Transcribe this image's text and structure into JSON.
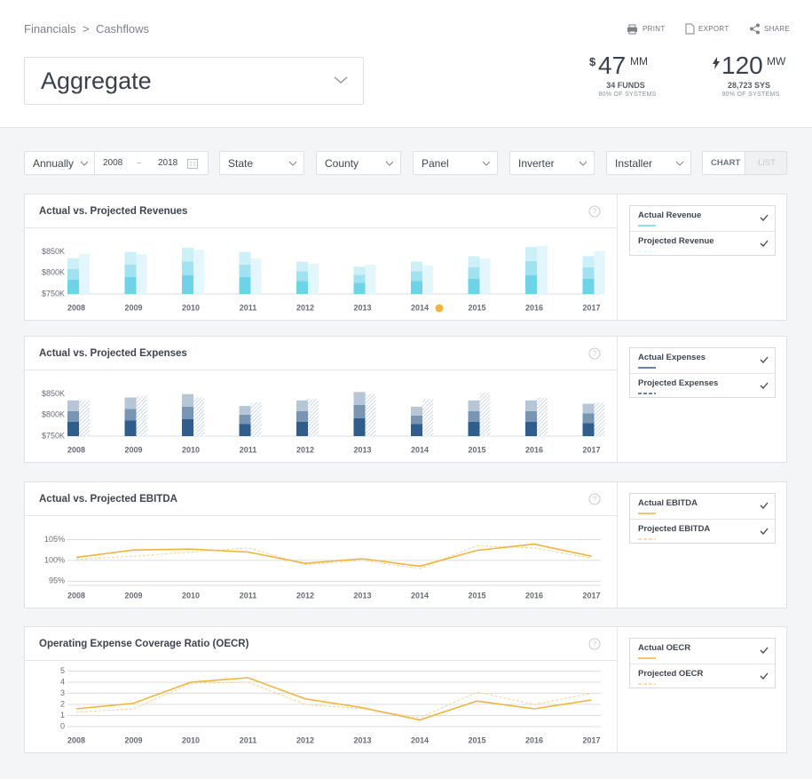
{
  "breadcrumb": [
    "Financials",
    "Cashflows"
  ],
  "selector": "Aggregate",
  "actions": [
    "PRINT",
    "EXPORT",
    "SHARE"
  ],
  "stats": [
    {
      "prefix": "$",
      "value": "47",
      "unit": "MM",
      "line1": "34 FUNDS",
      "line2": "80% OF SYSTEMS"
    },
    {
      "value": "120",
      "unit": "MW",
      "line1": "28,723 SYS",
      "line2": "90% OF SYSTEMS"
    }
  ],
  "filters": {
    "period": "Annually",
    "start": "2008",
    "end": "2018",
    "dropdowns": [
      "State",
      "County",
      "Panel",
      "Inverter",
      "Installer"
    ],
    "views": [
      "CHART",
      "LIST"
    ]
  },
  "chart_data": [
    {
      "type": "bar",
      "title": "Actual vs. Projected Revenues",
      "categories": [
        "2008",
        "2009",
        "2010",
        "2011",
        "2012",
        "2013",
        "2014",
        "2015",
        "2016",
        "2017"
      ],
      "series": [
        {
          "name": "Actual Revenue",
          "color": "#6fd3e8",
          "shading": "stepped",
          "values": [
            835000,
            850000,
            860000,
            850000,
            827000,
            815000,
            827000,
            840000,
            862000,
            840000
          ]
        },
        {
          "name": "Projected Revenue",
          "color": "#e2f6fb",
          "line_style": "dashed",
          "values": [
            845000,
            845000,
            855000,
            835000,
            822000,
            820000,
            818000,
            835000,
            865000,
            852000
          ]
        }
      ],
      "ylim": [
        750000,
        900000
      ],
      "yticks": [
        {
          "value": 750000,
          "label": "$750K"
        },
        {
          "value": 800000,
          "label": "$800K"
        },
        {
          "value": 850000,
          "label": "$850K"
        }
      ],
      "grid": false
    },
    {
      "type": "bar",
      "title": "Actual vs. Projected Expenses",
      "categories": [
        "2008",
        "2009",
        "2010",
        "2011",
        "2012",
        "2013",
        "2014",
        "2015",
        "2016",
        "2017"
      ],
      "series": [
        {
          "name": "Actual Expenses",
          "color": "#2f5d8c",
          "shading": "stepped",
          "values": [
            835000,
            842000,
            850000,
            822000,
            835000,
            855000,
            820000,
            835000,
            835000,
            827000
          ]
        },
        {
          "name": "Projected Expenses",
          "color": "#2f5d8c",
          "pattern": "hatched",
          "line_style": "dashed",
          "values": [
            835000,
            845000,
            842000,
            830000,
            838000,
            850000,
            838000,
            853000,
            842000,
            830000
          ]
        }
      ],
      "ylim": [
        750000,
        900000
      ],
      "yticks": [
        {
          "value": 750000,
          "label": "$750K"
        },
        {
          "value": 800000,
          "label": "$800K"
        },
        {
          "value": 850000,
          "label": "$850K"
        }
      ],
      "grid": false
    },
    {
      "type": "line",
      "title": "Actual vs. Projected EBITDA",
      "categories": [
        "2008",
        "2009",
        "2010",
        "2011",
        "2012",
        "2013",
        "2014",
        "2015",
        "2016",
        "2017"
      ],
      "series": [
        {
          "name": "Actual EBITDA",
          "color": "#f0b43c",
          "values": [
            100.7,
            102.5,
            102.7,
            102.0,
            99.3,
            100.4,
            98.6,
            102.4,
            103.9,
            101.0
          ]
        },
        {
          "name": "Projected EBITDA",
          "color": "#f6d48f",
          "line_style": "dashed",
          "values": [
            100.2,
            101.0,
            102.0,
            103.0,
            99.0,
            100.0,
            98.0,
            103.5,
            103.0,
            100.5
          ]
        }
      ],
      "ylim": [
        94,
        110
      ],
      "yticks": [
        {
          "value": 95,
          "label": "95%"
        },
        {
          "value": 100,
          "label": "100%"
        },
        {
          "value": 105,
          "label": "105%"
        }
      ],
      "grid": true
    },
    {
      "type": "line",
      "title": "Operating Expense Coverage Ratio (OECR)",
      "categories": [
        "2008",
        "2009",
        "2010",
        "2011",
        "2012",
        "2013",
        "2014",
        "2015",
        "2016",
        "2017"
      ],
      "series": [
        {
          "name": "Actual OECR",
          "color": "#f0b43c",
          "values": [
            1.6,
            2.1,
            4.0,
            4.4,
            2.5,
            1.7,
            0.6,
            2.3,
            1.6,
            2.4
          ]
        },
        {
          "name": "Projected OECR",
          "color": "#f6d48f",
          "line_style": "dashed",
          "values": [
            1.3,
            1.6,
            3.9,
            4.0,
            2.0,
            1.6,
            0.8,
            3.1,
            2.0,
            3.0
          ]
        }
      ],
      "ylim": [
        0,
        6
      ],
      "yticks": [
        0,
        1,
        2,
        3,
        4,
        5
      ],
      "grid": true
    }
  ]
}
